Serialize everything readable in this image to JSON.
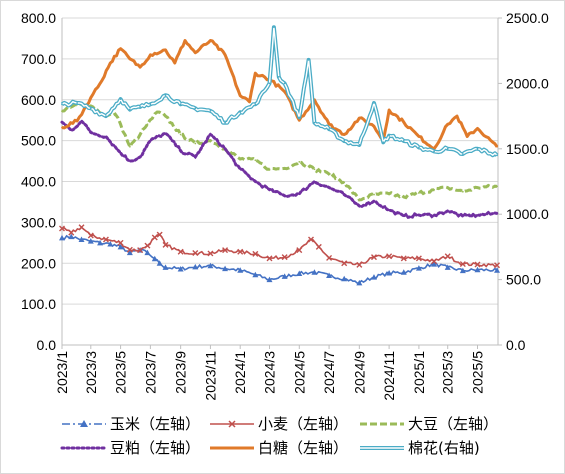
{
  "chart_data": {
    "type": "line",
    "title": "",
    "xlabel": "",
    "ylabel": "",
    "grid": "horizontal",
    "legend_placement": "bottom",
    "x_ticks": [
      "2023/1",
      "2023/3",
      "2023/5",
      "2023/7",
      "2023/9",
      "2023/11",
      "2024/1",
      "2024/3",
      "2024/5",
      "2024/7",
      "2024/9",
      "2024/11",
      "2025/1",
      "2025/3",
      "2025/5"
    ],
    "y_left": {
      "min": 0,
      "max": 800,
      "ticks": [
        0,
        100,
        200,
        300,
        400,
        500,
        600,
        700,
        800
      ],
      "tick_labels": [
        "0.0",
        "100.0",
        "200.0",
        "300.0",
        "400.0",
        "500.0",
        "600.0",
        "700.0",
        "800.0"
      ]
    },
    "y_right": {
      "min": 0,
      "max": 2500,
      "ticks": [
        0,
        500,
        1000,
        1500,
        2000,
        2500
      ],
      "tick_labels": [
        "0.0",
        "500.0",
        "1000.0",
        "1500.0",
        "2000.0",
        "2500.0"
      ]
    },
    "series": [
      {
        "name": "玉米（左轴）",
        "axis": "left",
        "color": "#4472C4",
        "style": "dashdot-triangle",
        "points": [
          [
            "2023/1/1",
            262
          ],
          [
            "2023/1/20",
            265
          ],
          [
            "2023/2/10",
            258
          ],
          [
            "2023/3/1",
            254
          ],
          [
            "2023/3/20",
            250
          ],
          [
            "2023/4/10",
            247
          ],
          [
            "2023/5/1",
            240
          ],
          [
            "2023/5/20",
            226
          ],
          [
            "2023/6/10",
            232
          ],
          [
            "2023/6/25",
            226
          ],
          [
            "2023/7/10",
            211
          ],
          [
            "2023/7/20",
            200
          ],
          [
            "2023/8/1",
            190
          ],
          [
            "2023/9/1",
            186
          ],
          [
            "2023/10/1",
            191
          ],
          [
            "2023/11/1",
            194
          ],
          [
            "2023/12/1",
            187
          ],
          [
            "2024/1/1",
            183
          ],
          [
            "2024/2/1",
            172
          ],
          [
            "2024/3/1",
            160
          ],
          [
            "2024/4/1",
            168
          ],
          [
            "2024/5/1",
            175
          ],
          [
            "2024/6/1",
            178
          ],
          [
            "2024/7/1",
            170
          ],
          [
            "2024/8/1",
            162
          ],
          [
            "2024/9/1",
            152
          ],
          [
            "2024/10/1",
            166
          ],
          [
            "2024/11/1",
            176
          ],
          [
            "2024/12/1",
            178
          ],
          [
            "2025/1/1",
            188
          ],
          [
            "2025/2/1",
            198
          ],
          [
            "2025/3/1",
            190
          ],
          [
            "2025/4/1",
            182
          ],
          [
            "2025/5/1",
            184
          ],
          [
            "2025/6/10",
            183
          ]
        ]
      },
      {
        "name": "小麦（左轴）",
        "axis": "left",
        "color": "#C0504D",
        "style": "x-marker",
        "points": [
          [
            "2023/1/1",
            285
          ],
          [
            "2023/1/20",
            275
          ],
          [
            "2023/2/10",
            288
          ],
          [
            "2023/3/1",
            268
          ],
          [
            "2023/4/1",
            258
          ],
          [
            "2023/5/1",
            250
          ],
          [
            "2023/5/20",
            233
          ],
          [
            "2023/6/10",
            232
          ],
          [
            "2023/6/25",
            243
          ],
          [
            "2023/7/10",
            263
          ],
          [
            "2023/7/20",
            270
          ],
          [
            "2023/8/1",
            245
          ],
          [
            "2023/9/1",
            228
          ],
          [
            "2023/10/1",
            225
          ],
          [
            "2023/11/1",
            224
          ],
          [
            "2023/12/1",
            232
          ],
          [
            "2024/1/1",
            228
          ],
          [
            "2024/2/1",
            223
          ],
          [
            "2024/3/1",
            212
          ],
          [
            "2024/4/1",
            215
          ],
          [
            "2024/5/1",
            232
          ],
          [
            "2024/5/25",
            258
          ],
          [
            "2024/6/10",
            240
          ],
          [
            "2024/7/1",
            213
          ],
          [
            "2024/8/1",
            200
          ],
          [
            "2024/9/1",
            196
          ],
          [
            "2024/10/1",
            215
          ],
          [
            "2024/11/1",
            217
          ],
          [
            "2024/12/1",
            212
          ],
          [
            "2025/1/1",
            212
          ],
          [
            "2025/2/1",
            205
          ],
          [
            "2025/3/1",
            217
          ],
          [
            "2025/4/1",
            198
          ],
          [
            "2025/5/1",
            197
          ],
          [
            "2025/6/10",
            195
          ]
        ]
      },
      {
        "name": "大豆（左轴）",
        "axis": "left",
        "color": "#9BBB59",
        "style": "dashed",
        "points": [
          [
            "2023/1/1",
            572
          ],
          [
            "2023/2/1",
            588
          ],
          [
            "2023/3/1",
            585
          ],
          [
            "2023/4/1",
            560
          ],
          [
            "2023/4/20",
            565
          ],
          [
            "2023/5/1",
            540
          ],
          [
            "2023/5/20",
            485
          ],
          [
            "2023/6/10",
            515
          ],
          [
            "2023/6/25",
            540
          ],
          [
            "2023/7/15",
            570
          ],
          [
            "2023/8/1",
            560
          ],
          [
            "2023/9/1",
            515
          ],
          [
            "2023/10/1",
            493
          ],
          [
            "2023/11/1",
            500
          ],
          [
            "2023/12/1",
            480
          ],
          [
            "2024/1/1",
            455
          ],
          [
            "2024/2/1",
            452
          ],
          [
            "2024/3/1",
            430
          ],
          [
            "2024/4/1",
            432
          ],
          [
            "2024/5/1",
            448
          ],
          [
            "2024/6/1",
            430
          ],
          [
            "2024/7/1",
            418
          ],
          [
            "2024/8/1",
            398
          ],
          [
            "2024/9/1",
            355
          ],
          [
            "2024/10/1",
            368
          ],
          [
            "2024/11/1",
            370
          ],
          [
            "2024/12/1",
            362
          ],
          [
            "2025/1/1",
            372
          ],
          [
            "2025/2/1",
            380
          ],
          [
            "2025/3/1",
            385
          ],
          [
            "2025/4/1",
            375
          ],
          [
            "2025/5/1",
            385
          ],
          [
            "2025/6/10",
            388
          ]
        ]
      },
      {
        "name": "豆粕（左轴）",
        "axis": "left",
        "color": "#7030A0",
        "style": "dotted",
        "points": [
          [
            "2023/1/1",
            545
          ],
          [
            "2023/1/20",
            525
          ],
          [
            "2023/2/10",
            548
          ],
          [
            "2023/3/1",
            520
          ],
          [
            "2023/4/1",
            510
          ],
          [
            "2023/5/1",
            470
          ],
          [
            "2023/5/20",
            450
          ],
          [
            "2023/6/10",
            460
          ],
          [
            "2023/7/1",
            500
          ],
          [
            "2023/8/1",
            518
          ],
          [
            "2023/9/1",
            475
          ],
          [
            "2023/10/1",
            460
          ],
          [
            "2023/11/1",
            515
          ],
          [
            "2023/12/1",
            480
          ],
          [
            "2024/1/1",
            430
          ],
          [
            "2024/2/1",
            400
          ],
          [
            "2024/3/1",
            380
          ],
          [
            "2024/4/1",
            365
          ],
          [
            "2024/5/1",
            370
          ],
          [
            "2024/6/1",
            400
          ],
          [
            "2024/7/1",
            385
          ],
          [
            "2024/8/1",
            368
          ],
          [
            "2024/9/1",
            340
          ],
          [
            "2024/10/1",
            352
          ],
          [
            "2024/11/1",
            330
          ],
          [
            "2024/12/1",
            315
          ],
          [
            "2025/1/1",
            318
          ],
          [
            "2025/2/1",
            318
          ],
          [
            "2025/3/1",
            328
          ],
          [
            "2025/4/1",
            315
          ],
          [
            "2025/5/1",
            318
          ],
          [
            "2025/6/10",
            322
          ]
        ]
      },
      {
        "name": "白糖（左轴）",
        "axis": "left",
        "color": "#E07A2A",
        "style": "solid-thick",
        "points": [
          [
            "2023/1/1",
            532
          ],
          [
            "2023/2/1",
            548
          ],
          [
            "2023/3/1",
            605
          ],
          [
            "2023/3/20",
            640
          ],
          [
            "2023/4/10",
            690
          ],
          [
            "2023/5/1",
            725
          ],
          [
            "2023/5/20",
            700
          ],
          [
            "2023/6/10",
            680
          ],
          [
            "2023/7/1",
            710
          ],
          [
            "2023/8/1",
            722
          ],
          [
            "2023/8/20",
            690
          ],
          [
            "2023/9/10",
            745
          ],
          [
            "2023/10/1",
            715
          ],
          [
            "2023/11/1",
            745
          ],
          [
            "2023/12/1",
            710
          ],
          [
            "2024/1/1",
            610
          ],
          [
            "2024/1/20",
            595
          ],
          [
            "2024/2/1",
            665
          ],
          [
            "2024/3/1",
            650
          ],
          [
            "2024/4/1",
            620
          ],
          [
            "2024/5/1",
            550
          ],
          [
            "2024/6/1",
            600
          ],
          [
            "2024/7/1",
            540
          ],
          [
            "2024/8/1",
            515
          ],
          [
            "2024/9/1",
            555
          ],
          [
            "2024/10/1",
            535
          ],
          [
            "2024/10/20",
            500
          ],
          [
            "2024/11/1",
            575
          ],
          [
            "2024/12/1",
            545
          ],
          [
            "2025/1/1",
            510
          ],
          [
            "2025/2/1",
            480
          ],
          [
            "2025/3/1",
            540
          ],
          [
            "2025/3/20",
            560
          ],
          [
            "2025/4/10",
            510
          ],
          [
            "2025/5/1",
            530
          ],
          [
            "2025/6/10",
            485
          ]
        ]
      },
      {
        "name": "棉花(右轴)",
        "axis": "right",
        "color": "#4BACC6",
        "style": "double",
        "points": [
          [
            "2023/1/1",
            1840
          ],
          [
            "2023/2/1",
            1850
          ],
          [
            "2023/3/1",
            1810
          ],
          [
            "2023/4/1",
            1750
          ],
          [
            "2023/5/1",
            1880
          ],
          [
            "2023/5/20",
            1800
          ],
          [
            "2023/6/10",
            1820
          ],
          [
            "2023/7/1",
            1840
          ],
          [
            "2023/8/1",
            1910
          ],
          [
            "2023/9/1",
            1840
          ],
          [
            "2023/10/1",
            1810
          ],
          [
            "2023/11/1",
            1790
          ],
          [
            "2023/12/1",
            1700
          ],
          [
            "2024/1/1",
            1780
          ],
          [
            "2024/2/1",
            1840
          ],
          [
            "2024/3/1",
            2000
          ],
          [
            "2024/3/10",
            2430
          ],
          [
            "2024/3/20",
            2050
          ],
          [
            "2024/4/1",
            2000
          ],
          [
            "2024/5/1",
            1740
          ],
          [
            "2024/5/20",
            2180
          ],
          [
            "2024/6/1",
            1700
          ],
          [
            "2024/7/1",
            1650
          ],
          [
            "2024/8/1",
            1560
          ],
          [
            "2024/9/1",
            1530
          ],
          [
            "2024/10/1",
            1850
          ],
          [
            "2024/10/20",
            1550
          ],
          [
            "2024/11/1",
            1600
          ],
          [
            "2024/12/1",
            1560
          ],
          [
            "2025/1/1",
            1510
          ],
          [
            "2025/2/1",
            1480
          ],
          [
            "2025/3/1",
            1500
          ],
          [
            "2025/4/1",
            1460
          ],
          [
            "2025/5/1",
            1500
          ],
          [
            "2025/6/10",
            1450
          ]
        ]
      }
    ]
  }
}
